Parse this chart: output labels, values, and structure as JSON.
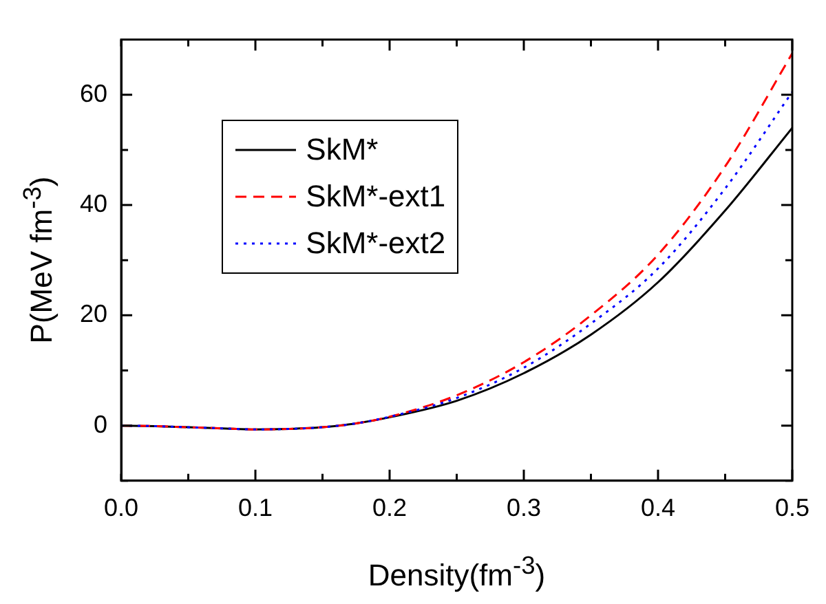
{
  "chart_data": {
    "type": "line",
    "xlabel": "Density(fm$^{-3}$)",
    "ylabel": "P(MeV fm$^{-3}$)",
    "x": [
      0,
      0.025,
      0.05,
      0.075,
      0.1,
      0.125,
      0.15,
      0.175,
      0.2,
      0.25,
      0.3,
      0.35,
      0.4,
      0.45,
      0.5
    ],
    "series": [
      {
        "name": "SkM*",
        "color": "#000000",
        "line_style": "solid",
        "values": [
          0,
          -0.1,
          -0.3,
          -0.5,
          -0.7,
          -0.6,
          -0.3,
          0.4,
          1.5,
          4.5,
          9.5,
          16.5,
          26,
          39,
          54
        ]
      },
      {
        "name": "SkM*-ext1",
        "color": "#ff0000",
        "line_style": "dashed",
        "values": [
          0,
          -0.1,
          -0.3,
          -0.5,
          -0.7,
          -0.6,
          -0.3,
          0.4,
          1.6,
          5.5,
          11.5,
          20,
          31,
          47,
          67.5
        ]
      },
      {
        "name": "SkM*-ext2",
        "color": "#0000ff",
        "line_style": "dotted",
        "values": [
          0,
          -0.1,
          -0.3,
          -0.5,
          -0.7,
          -0.6,
          -0.3,
          0.4,
          1.6,
          5,
          10.5,
          18.5,
          28.5,
          43,
          60.5
        ]
      }
    ],
    "xlim": [
      0,
      0.5
    ],
    "xticks": [
      {
        "value": 0,
        "label": "0.0"
      },
      {
        "value": 0.05,
        "label": null
      },
      0.1,
      {
        "value": 0.15,
        "label": null
      },
      0.2,
      {
        "value": 0.25,
        "label": null
      },
      0.3,
      {
        "value": 0.35,
        "label": null
      },
      0.4,
      {
        "value": 0.45,
        "label": null
      },
      0.5
    ],
    "ylim": [
      -10,
      70
    ],
    "yticks": [
      {
        "value": -10,
        "label": null
      },
      0,
      {
        "value": 10,
        "label": null
      },
      20,
      {
        "value": 30,
        "label": null
      },
      40,
      {
        "value": 50,
        "label": null
      },
      60,
      {
        "value": 70,
        "label": null
      }
    ],
    "grid": false,
    "legend": "top left",
    "marker": "none"
  }
}
